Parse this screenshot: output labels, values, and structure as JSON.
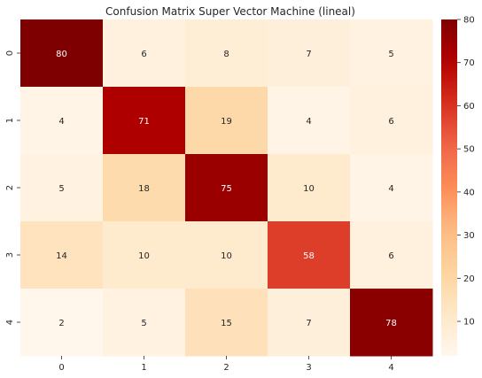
{
  "chart_data": {
    "type": "heatmap",
    "title": "Confusion Matrix Super Vector Machine (lineal)",
    "xlabel": "",
    "ylabel": "",
    "x_categories": [
      "0",
      "1",
      "2",
      "3",
      "4"
    ],
    "y_categories": [
      "0",
      "1",
      "2",
      "3",
      "4"
    ],
    "values": [
      [
        80,
        6,
        8,
        7,
        5
      ],
      [
        4,
        71,
        19,
        4,
        6
      ],
      [
        5,
        18,
        75,
        10,
        4
      ],
      [
        14,
        10,
        10,
        58,
        6
      ],
      [
        2,
        5,
        15,
        7,
        78
      ]
    ],
    "colormap": "OrRd",
    "vmin": 2,
    "vmax": 80,
    "colorbar_ticks": [
      10,
      20,
      30,
      40,
      50,
      60,
      70,
      80
    ],
    "annotations": true,
    "grid": false
  }
}
